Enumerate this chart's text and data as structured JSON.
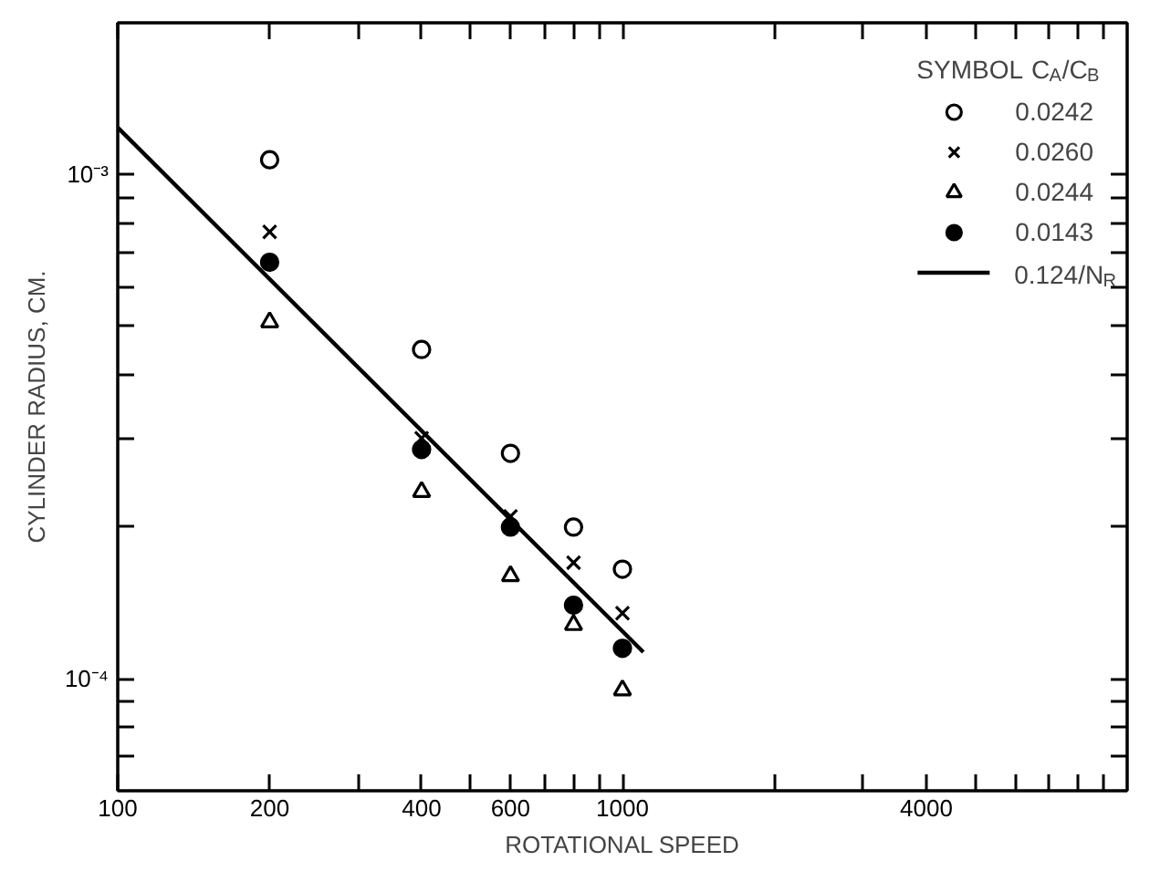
{
  "chart_data": {
    "type": "scatter",
    "xlabel": "ROTATIONAL SPEED",
    "ylabel": "CYLINDER RADIUS, CM.",
    "log": "xy",
    "grid": false,
    "legend": "top right",
    "legend_title": "SYMBOL",
    "annotations": [
      "C$_{A}$/C$_{B}$"
    ],
    "xlim": [
      100,
      10000
    ],
    "ylim": [
      6e-05,
      0.002
    ],
    "xticks": [
      100,
      200,
      {
        "value": 300,
        "label": null
      },
      400,
      {
        "value": 500,
        "label": null
      },
      600,
      {
        "value": 700,
        "label": null
      },
      {
        "value": 800,
        "label": null
      },
      {
        "value": 900,
        "label": null
      },
      1000,
      {
        "value": 2000,
        "label": null
      },
      {
        "value": 3000,
        "label": null
      },
      4000,
      {
        "value": 5000,
        "label": null
      },
      {
        "value": 6000,
        "label": null
      },
      {
        "value": 7000,
        "label": null
      },
      {
        "value": 8000,
        "label": null
      },
      {
        "value": 9000,
        "label": null
      }
    ],
    "yticks": [
      {
        "value": 7e-05,
        "label": null
      },
      {
        "value": 8e-05,
        "label": null
      },
      {
        "value": 9e-05,
        "label": null
      },
      {
        "value": 0.0001,
        "label": "10⁻⁴"
      },
      {
        "value": 0.0002,
        "label": null
      },
      {
        "value": 0.0003,
        "label": null
      },
      {
        "value": 0.0004,
        "label": null
      },
      {
        "value": 0.0005,
        "label": null
      },
      {
        "value": 0.0006,
        "label": null
      },
      {
        "value": 0.0007,
        "label": null
      },
      {
        "value": 0.0008,
        "label": null
      },
      {
        "value": 0.0009,
        "label": null
      },
      {
        "value": 0.001,
        "label": "10⁻³"
      }
    ],
    "x": [
      200,
      400,
      600,
      800,
      1000
    ],
    "series": [
      {
        "name": "0.0242",
        "color": "#000000",
        "marker": "circle_open",
        "values": [
          0.00107,
          0.00045,
          0.00028,
          0.0002,
          0.000165
        ]
      },
      {
        "name": "0.0260",
        "color": "#000000",
        "marker": "cross",
        "values": [
          0.00077,
          0.0003,
          0.00021,
          0.00017,
          0.000135
        ]
      },
      {
        "name": "0.0244",
        "color": "#000000",
        "marker": "triangle_open",
        "values": [
          0.00051,
          0.000235,
          0.00016,
          0.000128,
          9.5e-05
        ]
      },
      {
        "name": "0.0143",
        "color": "#000000",
        "marker": "circle",
        "values": [
          0.00067,
          0.000285,
          0.0002,
          0.00014,
          0.000115
        ]
      },
      {
        "name": "0.124/N$_{R}$",
        "type": "line",
        "color": "#000000",
        "marker": "none",
        "line_style": "solid",
        "x": [
          100,
          1100
        ],
        "values": [
          0.00124,
          0.000113
        ]
      }
    ]
  }
}
